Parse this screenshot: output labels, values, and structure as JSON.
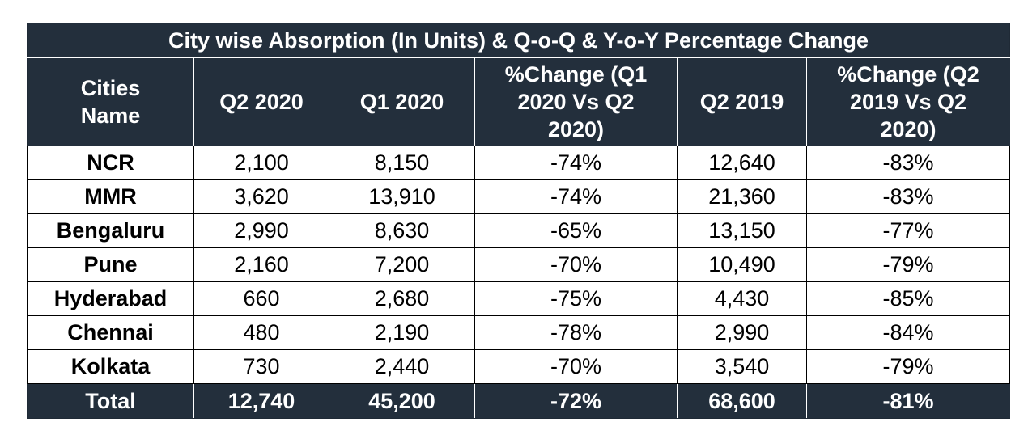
{
  "table": {
    "title": "City wise Absorption (In Units) & Q-o-Q & Y-o-Y Percentage Change",
    "headers": [
      "Cities Name",
      "Q2 2020",
      "Q1 2020",
      "%Change (Q1 2020 Vs Q2 2020)",
      "Q2 2019",
      "%Change (Q2 2019 Vs Q2 2020)"
    ],
    "rows": [
      [
        "NCR",
        "2,100",
        "8,150",
        "-74%",
        "12,640",
        "-83%"
      ],
      [
        "MMR",
        "3,620",
        "13,910",
        "-74%",
        "21,360",
        "-83%"
      ],
      [
        "Bengaluru",
        "2,990",
        "8,630",
        "-65%",
        "13,150",
        "-77%"
      ],
      [
        "Pune",
        "2,160",
        "7,200",
        "-70%",
        "10,490",
        "-79%"
      ],
      [
        "Hyderabad",
        "660",
        "2,680",
        "-75%",
        "4,430",
        "-85%"
      ],
      [
        "Chennai",
        "480",
        "2,190",
        "-78%",
        "2,990",
        "-84%"
      ],
      [
        "Kolkata",
        "730",
        "2,440",
        "-70%",
        "3,540",
        "-79%"
      ]
    ],
    "total": [
      "Total",
      "12,740",
      "45,200",
      "-72%",
      "68,600",
      "-81%"
    ]
  },
  "colors": {
    "header_bg": "#232f3c",
    "header_text": "#ffffff",
    "body_text": "#000000"
  }
}
